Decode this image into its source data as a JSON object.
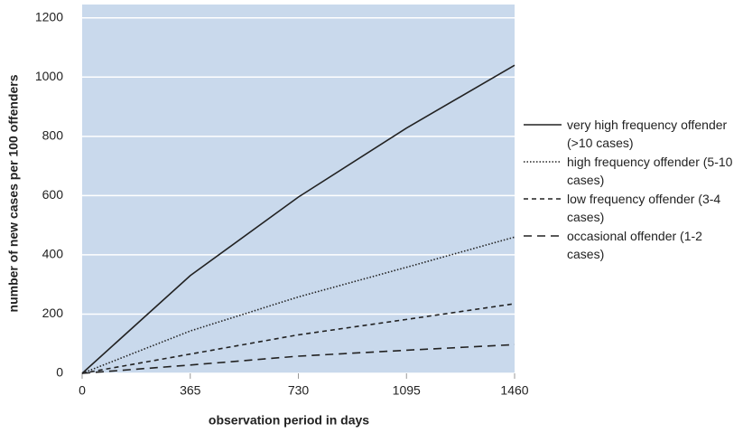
{
  "chart_data": {
    "type": "line",
    "x_label": "observation period in days",
    "y_label": "number of new cases per 100 offenders",
    "x": [
      0,
      365,
      730,
      1095,
      1460
    ],
    "series": [
      {
        "name": "very high frequency offender (>10 cases)",
        "color": "#222222",
        "dash": "solid",
        "values": [
          0,
          330,
          595,
          828,
          1040
        ]
      },
      {
        "name": "high frequency offender (5-10 cases)",
        "color": "#222222",
        "dash": "dotted",
        "values": [
          0,
          143,
          258,
          358,
          460
        ]
      },
      {
        "name": "low frequency offender (3-4 cases)",
        "color": "#222222",
        "dash": "dashed",
        "values": [
          0,
          65,
          130,
          182,
          235
        ]
      },
      {
        "name": "occasional offender (1-2 cases)",
        "color": "#222222",
        "dash": "longdash",
        "values": [
          0,
          28,
          58,
          78,
          97
        ]
      }
    ],
    "xlim": [
      0,
      1460
    ],
    "xticks": [
      0,
      365,
      730,
      1095,
      1460
    ],
    "ylim": [
      0,
      1245
    ],
    "yticks": [
      0,
      200,
      400,
      600,
      800,
      1000,
      1200
    ],
    "grid": true,
    "plot_background": "#c9d9ec",
    "legend": "right"
  }
}
